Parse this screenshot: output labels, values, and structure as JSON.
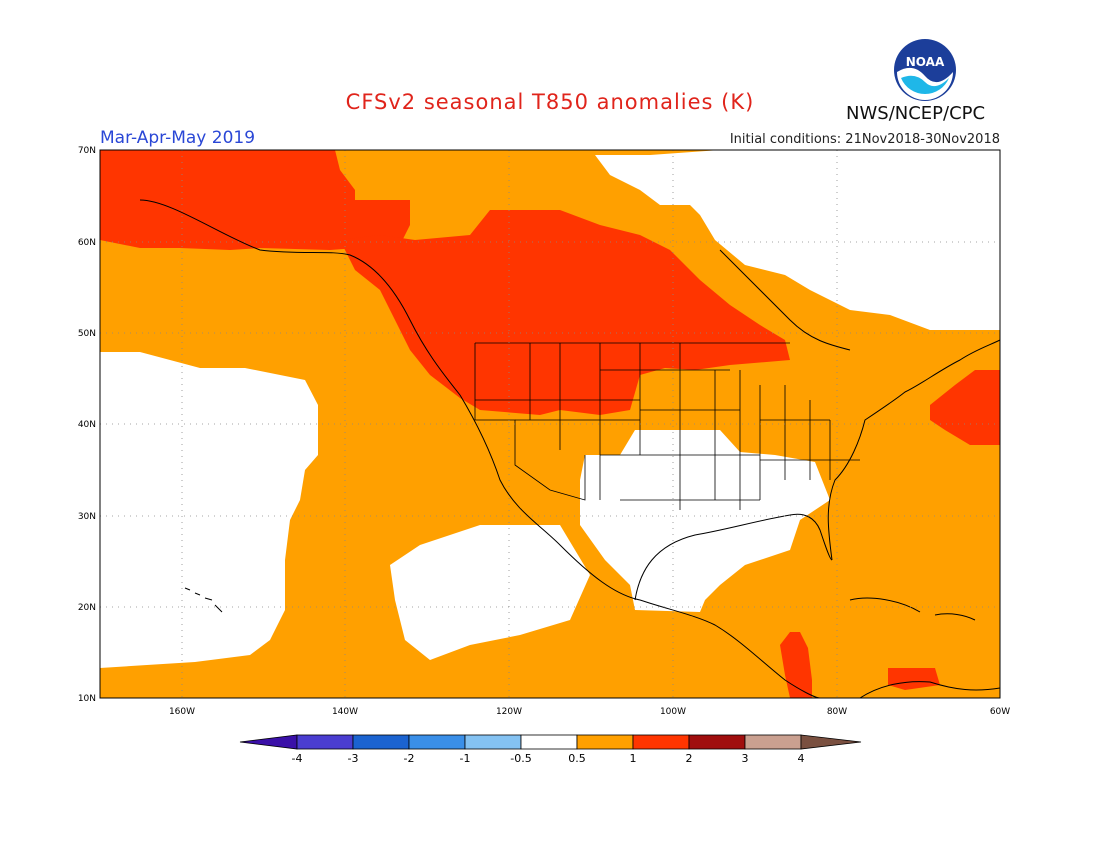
{
  "title": "CFSv2 seasonal T850 anomalies (K)",
  "period": "Mar-Apr-May 2019",
  "initial_conditions": "Initial conditions: 21Nov2018-30Nov2018",
  "agency": "NWS/NCEP/CPC",
  "logo": {
    "text": "NOAA",
    "icon": "noaa-logo-icon"
  },
  "map": {
    "lat_ticks": [
      "70N",
      "60N",
      "50N",
      "40N",
      "30N",
      "20N",
      "10N"
    ],
    "lon_ticks": [
      "160W",
      "140W",
      "120W",
      "100W",
      "80W",
      "60W"
    ],
    "colors": {
      "white": "#ffffff",
      "orange": "#ffa000",
      "red": "#ff3500",
      "darkred": "#b01a10",
      "grid": "#888888",
      "coast": "#000000"
    }
  },
  "colorbar": {
    "labels": [
      "-4",
      "-3",
      "-2",
      "-1",
      "-0.5",
      "0.5",
      "1",
      "2",
      "3",
      "4"
    ],
    "colors": [
      "#3a10a8",
      "#4a3dd0",
      "#1b63d0",
      "#3a8fe8",
      "#84c2f2",
      "#ffffff",
      "#ffa000",
      "#ff3500",
      "#a00e0e",
      "#caa090",
      "#7a5040"
    ]
  }
}
